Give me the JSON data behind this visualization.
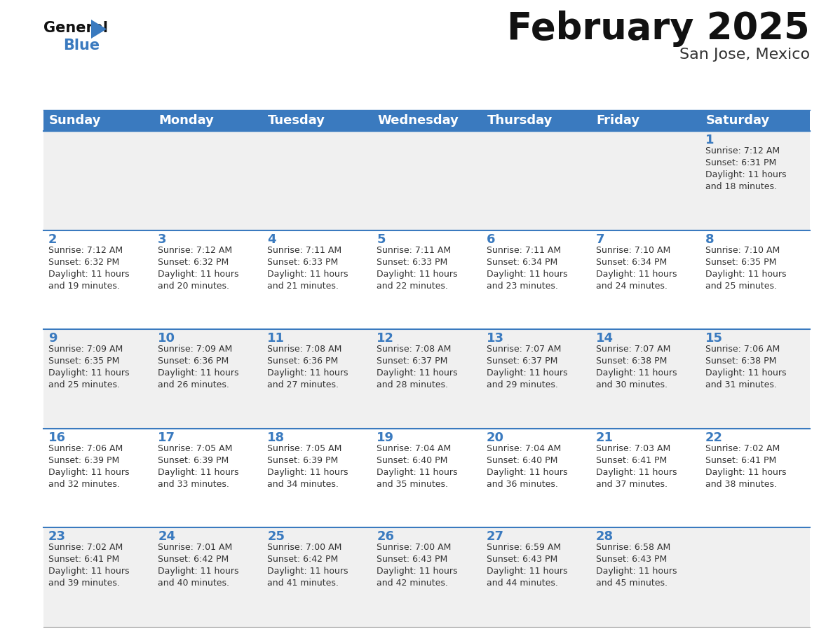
{
  "title": "February 2025",
  "subtitle": "San Jose, Mexico",
  "header_bg": "#3a7abf",
  "header_text_color": "#ffffff",
  "day_names": [
    "Sunday",
    "Monday",
    "Tuesday",
    "Wednesday",
    "Thursday",
    "Friday",
    "Saturday"
  ],
  "row_bg_even": "#f0f0f0",
  "row_bg_odd": "#ffffff",
  "day_num_color": "#3a7abf",
  "info_color": "#333333",
  "row_separator_color": "#3a7abf",
  "calendar": [
    [
      null,
      null,
      null,
      null,
      null,
      null,
      {
        "day": 1,
        "sunrise": "7:12 AM",
        "sunset": "6:31 PM",
        "daylight": "11 hours and 18 minutes"
      }
    ],
    [
      {
        "day": 2,
        "sunrise": "7:12 AM",
        "sunset": "6:32 PM",
        "daylight": "11 hours and 19 minutes"
      },
      {
        "day": 3,
        "sunrise": "7:12 AM",
        "sunset": "6:32 PM",
        "daylight": "11 hours and 20 minutes"
      },
      {
        "day": 4,
        "sunrise": "7:11 AM",
        "sunset": "6:33 PM",
        "daylight": "11 hours and 21 minutes"
      },
      {
        "day": 5,
        "sunrise": "7:11 AM",
        "sunset": "6:33 PM",
        "daylight": "11 hours and 22 minutes"
      },
      {
        "day": 6,
        "sunrise": "7:11 AM",
        "sunset": "6:34 PM",
        "daylight": "11 hours and 23 minutes"
      },
      {
        "day": 7,
        "sunrise": "7:10 AM",
        "sunset": "6:34 PM",
        "daylight": "11 hours and 24 minutes"
      },
      {
        "day": 8,
        "sunrise": "7:10 AM",
        "sunset": "6:35 PM",
        "daylight": "11 hours and 25 minutes"
      }
    ],
    [
      {
        "day": 9,
        "sunrise": "7:09 AM",
        "sunset": "6:35 PM",
        "daylight": "11 hours and 25 minutes"
      },
      {
        "day": 10,
        "sunrise": "7:09 AM",
        "sunset": "6:36 PM",
        "daylight": "11 hours and 26 minutes"
      },
      {
        "day": 11,
        "sunrise": "7:08 AM",
        "sunset": "6:36 PM",
        "daylight": "11 hours and 27 minutes"
      },
      {
        "day": 12,
        "sunrise": "7:08 AM",
        "sunset": "6:37 PM",
        "daylight": "11 hours and 28 minutes"
      },
      {
        "day": 13,
        "sunrise": "7:07 AM",
        "sunset": "6:37 PM",
        "daylight": "11 hours and 29 minutes"
      },
      {
        "day": 14,
        "sunrise": "7:07 AM",
        "sunset": "6:38 PM",
        "daylight": "11 hours and 30 minutes"
      },
      {
        "day": 15,
        "sunrise": "7:06 AM",
        "sunset": "6:38 PM",
        "daylight": "11 hours and 31 minutes"
      }
    ],
    [
      {
        "day": 16,
        "sunrise": "7:06 AM",
        "sunset": "6:39 PM",
        "daylight": "11 hours and 32 minutes"
      },
      {
        "day": 17,
        "sunrise": "7:05 AM",
        "sunset": "6:39 PM",
        "daylight": "11 hours and 33 minutes"
      },
      {
        "day": 18,
        "sunrise": "7:05 AM",
        "sunset": "6:39 PM",
        "daylight": "11 hours and 34 minutes"
      },
      {
        "day": 19,
        "sunrise": "7:04 AM",
        "sunset": "6:40 PM",
        "daylight": "11 hours and 35 minutes"
      },
      {
        "day": 20,
        "sunrise": "7:04 AM",
        "sunset": "6:40 PM",
        "daylight": "11 hours and 36 minutes"
      },
      {
        "day": 21,
        "sunrise": "7:03 AM",
        "sunset": "6:41 PM",
        "daylight": "11 hours and 37 minutes"
      },
      {
        "day": 22,
        "sunrise": "7:02 AM",
        "sunset": "6:41 PM",
        "daylight": "11 hours and 38 minutes"
      }
    ],
    [
      {
        "day": 23,
        "sunrise": "7:02 AM",
        "sunset": "6:41 PM",
        "daylight": "11 hours and 39 minutes"
      },
      {
        "day": 24,
        "sunrise": "7:01 AM",
        "sunset": "6:42 PM",
        "daylight": "11 hours and 40 minutes"
      },
      {
        "day": 25,
        "sunrise": "7:00 AM",
        "sunset": "6:42 PM",
        "daylight": "11 hours and 41 minutes"
      },
      {
        "day": 26,
        "sunrise": "7:00 AM",
        "sunset": "6:43 PM",
        "daylight": "11 hours and 42 minutes"
      },
      {
        "day": 27,
        "sunrise": "6:59 AM",
        "sunset": "6:43 PM",
        "daylight": "11 hours and 44 minutes"
      },
      {
        "day": 28,
        "sunrise": "6:58 AM",
        "sunset": "6:43 PM",
        "daylight": "11 hours and 45 minutes"
      },
      null
    ]
  ],
  "logo_triangle_color": "#3a7abf",
  "title_fontsize": 38,
  "subtitle_fontsize": 16,
  "header_fontsize": 13,
  "day_num_fontsize": 13,
  "info_fontsize": 9
}
